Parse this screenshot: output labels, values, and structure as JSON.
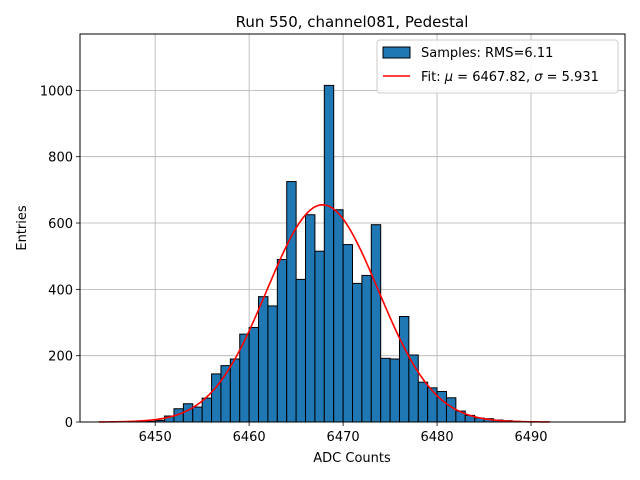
{
  "chart_data": {
    "type": "bar",
    "title": "Run 550, channel081, Pedestal",
    "xlabel": "ADC Counts",
    "ylabel": "Entries",
    "xlim": [
      6442,
      6500
    ],
    "ylim": [
      0,
      1170
    ],
    "xticks": [
      6450,
      6460,
      6470,
      6480,
      6490
    ],
    "yticks": [
      0,
      200,
      400,
      600,
      800,
      1000
    ],
    "grid": true,
    "bin_width": 1,
    "bins": [
      {
        "x": 6449,
        "y": 2
      },
      {
        "x": 6450,
        "y": 5
      },
      {
        "x": 6451,
        "y": 18
      },
      {
        "x": 6452,
        "y": 40
      },
      {
        "x": 6453,
        "y": 55
      },
      {
        "x": 6454,
        "y": 45
      },
      {
        "x": 6455,
        "y": 72
      },
      {
        "x": 6456,
        "y": 145
      },
      {
        "x": 6457,
        "y": 170
      },
      {
        "x": 6458,
        "y": 190
      },
      {
        "x": 6459,
        "y": 265
      },
      {
        "x": 6460,
        "y": 285
      },
      {
        "x": 6461,
        "y": 378
      },
      {
        "x": 6462,
        "y": 350
      },
      {
        "x": 6463,
        "y": 490
      },
      {
        "x": 6464,
        "y": 725
      },
      {
        "x": 6465,
        "y": 430
      },
      {
        "x": 6466,
        "y": 625
      },
      {
        "x": 6467,
        "y": 515
      },
      {
        "x": 6468,
        "y": 1015
      },
      {
        "x": 6469,
        "y": 640
      },
      {
        "x": 6470,
        "y": 535
      },
      {
        "x": 6471,
        "y": 418
      },
      {
        "x": 6472,
        "y": 442
      },
      {
        "x": 6473,
        "y": 595
      },
      {
        "x": 6474,
        "y": 192
      },
      {
        "x": 6475,
        "y": 190
      },
      {
        "x": 6476,
        "y": 318
      },
      {
        "x": 6477,
        "y": 202
      },
      {
        "x": 6478,
        "y": 120
      },
      {
        "x": 6479,
        "y": 103
      },
      {
        "x": 6480,
        "y": 92
      },
      {
        "x": 6481,
        "y": 73
      },
      {
        "x": 6482,
        "y": 33
      },
      {
        "x": 6483,
        "y": 20
      },
      {
        "x": 6484,
        "y": 12
      },
      {
        "x": 6485,
        "y": 10
      },
      {
        "x": 6486,
        "y": 6
      },
      {
        "x": 6487,
        "y": 4
      },
      {
        "x": 6488,
        "y": 2
      }
    ],
    "fit": {
      "mu": 6467.82,
      "sigma": 5.931,
      "amplitude": 655,
      "x_range": [
        6444,
        6492
      ],
      "color": "#ff0000"
    },
    "bar_color": "#1f77b4",
    "legend": {
      "placement": "top-right",
      "entries": [
        {
          "label": "Samples: RMS=6.11",
          "kind": "patch"
        },
        {
          "label_prefix": "Fit: ",
          "mu_symbol": "μ",
          "mu_value": " = 6467.82, ",
          "sigma_symbol": "σ",
          "sigma_value": " = 5.931",
          "kind": "line"
        }
      ]
    }
  }
}
